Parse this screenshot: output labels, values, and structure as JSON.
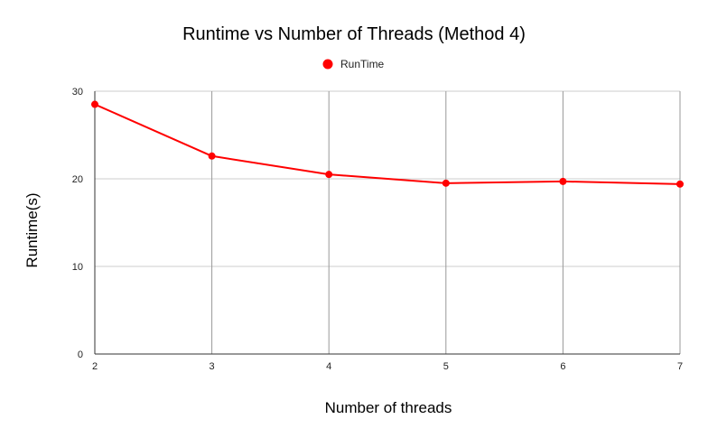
{
  "chart_data": {
    "type": "line",
    "title": "Runtime vs Number of Threads (Method 4)",
    "xlabel": "Number of threads",
    "ylabel": "Runtime(s)",
    "x": [
      2,
      3,
      4,
      5,
      6,
      7
    ],
    "series": [
      {
        "name": "RunTime",
        "color": "#ff0000",
        "values": [
          28.5,
          22.6,
          20.5,
          19.5,
          19.7,
          19.4
        ]
      }
    ],
    "ylim": [
      0,
      30
    ],
    "yticks": [
      0,
      10,
      20,
      30
    ],
    "grid": true,
    "legend": "top-center"
  }
}
